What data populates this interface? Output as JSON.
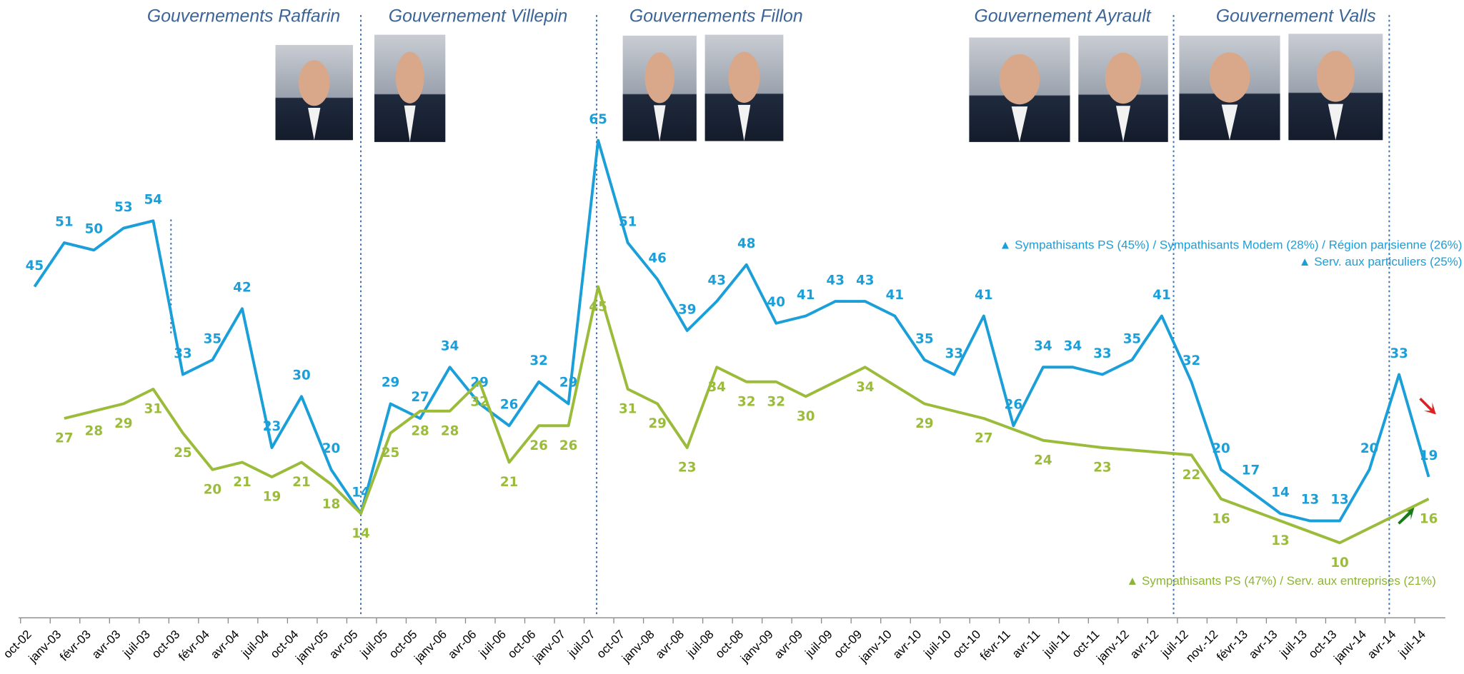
{
  "chart_data": {
    "type": "line",
    "categories": [
      "oct-02",
      "janv-03",
      "févr-03",
      "avr-03",
      "juil-03",
      "oct-03",
      "févr-04",
      "avr-04",
      "juil-04",
      "oct-04",
      "janv-05",
      "avr-05",
      "juil-05",
      "oct-05",
      "janv-06",
      "avr-06",
      "juil-06",
      "oct-06",
      "janv-07",
      "juil-07",
      "oct-07",
      "janv-08",
      "avr-08",
      "juil-08",
      "oct-08",
      "janv-09",
      "avr-09",
      "juil-09",
      "oct-09",
      "janv-10",
      "avr-10",
      "juil-10",
      "oct-10",
      "févr-11",
      "avr-11",
      "juil-11",
      "oct-11",
      "janv-12",
      "avr-12",
      "juil-12",
      "nov.-12",
      "févr-13",
      "avr-13",
      "juil-13",
      "oct-13",
      "janv-14",
      "avr-14",
      "juil-14"
    ],
    "series": [
      {
        "color": "#1a9fd9",
        "values": [
          45,
          51,
          50,
          53,
          54,
          33,
          35,
          42,
          23,
          30,
          20,
          14,
          29,
          27,
          34,
          29,
          26,
          32,
          29,
          65,
          51,
          46,
          39,
          43,
          48,
          40,
          41,
          43,
          43,
          41,
          35,
          33,
          41,
          26,
          34,
          34,
          33,
          35,
          41,
          32,
          20,
          17,
          14,
          13,
          13,
          20,
          33,
          19
        ]
      },
      {
        "color": "#9bbb3b",
        "values": [
          null,
          27,
          28,
          29,
          31,
          25,
          20,
          21,
          19,
          21,
          18,
          14,
          25,
          28,
          28,
          32,
          21,
          26,
          26,
          45,
          31,
          29,
          23,
          34,
          32,
          32,
          30,
          null,
          34,
          null,
          29,
          null,
          27,
          null,
          24,
          null,
          23,
          null,
          null,
          22,
          16,
          null,
          13,
          null,
          10,
          null,
          null,
          16
        ]
      }
    ],
    "ylim": [
      0,
      70
    ],
    "annotations": [
      "Gouvernements Raffarin",
      "Gouvernement Villepin",
      "Gouvernements Fillon",
      "Gouvernement Ayrault",
      "Gouvernement Valls"
    ],
    "notes": [
      "▲ Sympathisants PS (45%) / Sympathisants Modem (28%) / Région parisienne (26%)",
      "▲ Serv. aux particuliers (25%)",
      "▲ Sympathisants PS (47%) / Serv. aux entreprises (21%)"
    ]
  }
}
